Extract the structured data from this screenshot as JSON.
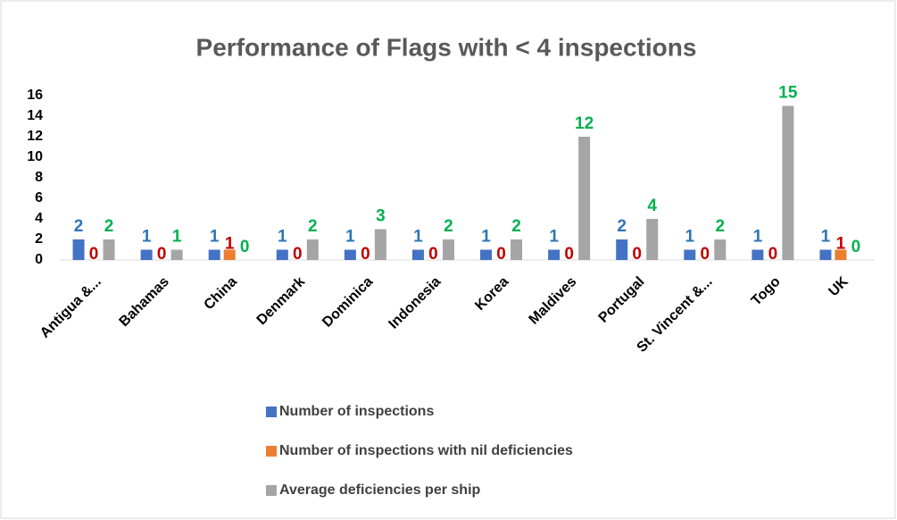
{
  "chart_data": {
    "type": "bar",
    "title": "Performance of Flags with < 4 inspections",
    "categories": [
      "Antigua &...",
      "Bahamas",
      "China",
      "Denmark",
      "Dominica",
      "Indonesia",
      "Korea",
      "Maldives",
      "Portugal",
      "St. Vincent &...",
      "Togo",
      "UK"
    ],
    "series": [
      {
        "name": "Number of inspections",
        "color": "#4472c4",
        "label_color": "#2e75b6",
        "values": [
          2,
          1,
          1,
          1,
          1,
          1,
          1,
          1,
          2,
          1,
          1,
          1
        ]
      },
      {
        "name": "Number of inspections with nil deficiencies",
        "color": "#ed7d31",
        "label_color": "#c00000",
        "values": [
          0,
          0,
          1,
          0,
          0,
          0,
          0,
          0,
          0,
          0,
          0,
          1
        ]
      },
      {
        "name": "Average deficiencies per ship",
        "color": "#a5a5a5",
        "label_color": "#00b050",
        "values": [
          2,
          1,
          0,
          2,
          3,
          2,
          2,
          12,
          4,
          2,
          15,
          0
        ]
      }
    ],
    "ylim": [
      0,
      16
    ],
    "yticks": [
      0,
      2,
      4,
      6,
      8,
      10,
      12,
      14,
      16
    ],
    "grid": false,
    "legend": "bottom"
  }
}
